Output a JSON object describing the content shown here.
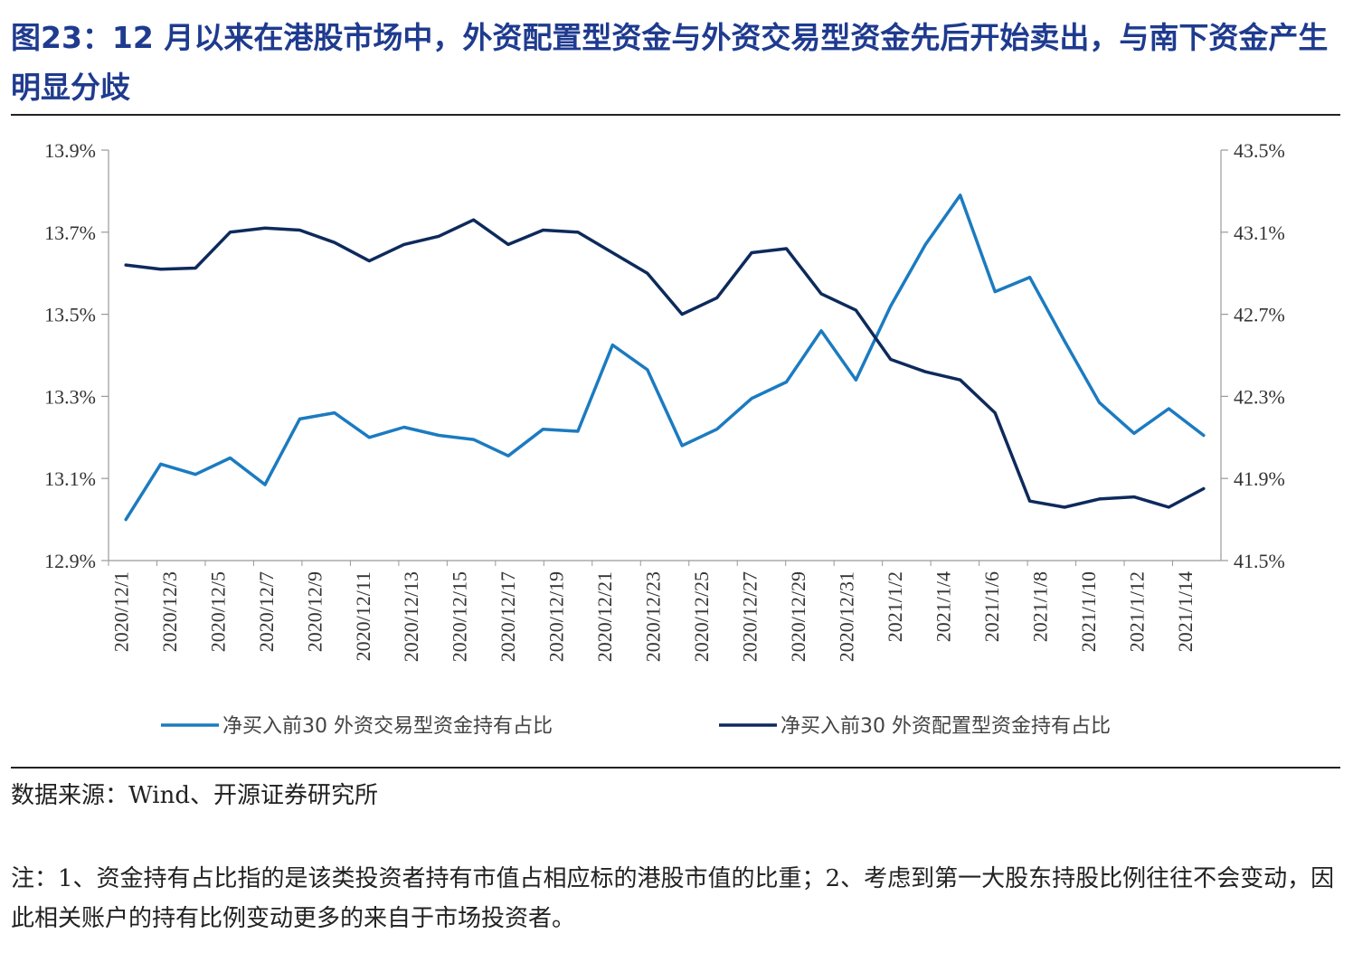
{
  "header": {
    "title": "图23：12 月以来在港股市场中，外资配置型资金与外资交易型资金先后开始卖出，与南下资金产生明显分歧"
  },
  "chart_data": {
    "type": "line",
    "x": [
      "2020/12/1",
      "2020/12/2",
      "2020/12/3",
      "2020/12/4",
      "2020/12/7",
      "2020/12/8",
      "2020/12/9",
      "2020/12/10",
      "2020/12/11",
      "2020/12/14",
      "2020/12/15",
      "2020/12/16",
      "2020/12/17",
      "2020/12/18",
      "2020/12/21",
      "2020/12/22",
      "2020/12/23",
      "2020/12/24",
      "2020/12/28",
      "2020/12/29",
      "2020/12/30",
      "2020/12/31",
      "2021/1/4",
      "2021/1/5",
      "2021/1/6",
      "2021/1/7",
      "2021/1/8",
      "2021/1/11",
      "2021/1/12",
      "2021/1/13",
      "2021/1/14",
      "2021/1/15"
    ],
    "x_tick_labels": [
      "2020/12/1",
      "2020/12/3",
      "2020/12/5",
      "2020/12/7",
      "2020/12/9",
      "2020/12/11",
      "2020/12/13",
      "2020/12/15",
      "2020/12/17",
      "2020/12/19",
      "2020/12/21",
      "2020/12/23",
      "2020/12/25",
      "2020/12/27",
      "2020/12/29",
      "2020/12/31",
      "2021/1/2",
      "2021/1/4",
      "2021/1/6",
      "2021/1/8",
      "2021/1/10",
      "2021/1/12",
      "2021/1/14"
    ],
    "series": [
      {
        "name": "净买入前30 外资交易型资金持有占比",
        "axis": "left",
        "color": "#1b7bc0",
        "values": [
          13.0,
          13.135,
          13.11,
          13.15,
          13.085,
          13.245,
          13.26,
          13.2,
          13.225,
          13.205,
          13.195,
          13.155,
          13.22,
          13.215,
          13.425,
          13.365,
          13.18,
          13.22,
          13.295,
          13.335,
          13.46,
          13.34,
          13.52,
          13.67,
          13.79,
          13.555,
          13.59,
          13.435,
          13.285,
          13.21,
          13.27,
          13.205
        ]
      },
      {
        "name": "净买入前30 外资配置型资金持有占比",
        "axis": "right",
        "color": "#0d2a5c",
        "values": [
          42.94,
          42.92,
          42.925,
          43.1,
          43.12,
          43.11,
          43.05,
          42.96,
          43.04,
          43.08,
          43.16,
          43.04,
          43.11,
          43.1,
          43.0,
          42.9,
          42.7,
          42.78,
          43.0,
          43.02,
          42.8,
          42.72,
          42.48,
          42.42,
          42.38,
          42.22,
          41.79,
          41.76,
          41.8,
          41.81,
          41.76,
          41.85
        ]
      }
    ],
    "y_left": {
      "ticks": [
        "13.9%",
        "13.7%",
        "13.5%",
        "13.3%",
        "13.1%",
        "12.9%"
      ],
      "ylim": [
        12.9,
        13.9
      ]
    },
    "y_right": {
      "ticks": [
        "43.5%",
        "43.1%",
        "42.7%",
        "42.3%",
        "41.9%",
        "41.5%"
      ],
      "ylim": [
        41.5,
        43.5
      ]
    },
    "grid": false,
    "legend_position": "bottom"
  },
  "footer": {
    "source": "数据来源：Wind、开源证券研究所",
    "note": "注：1、资金持有占比指的是该类投资者持有市值占相应标的港股市值的比重；2、考虑到第一大股东持股比例往往不会变动，因此相关账户的持有比例变动更多的来自于市场投资者。"
  }
}
